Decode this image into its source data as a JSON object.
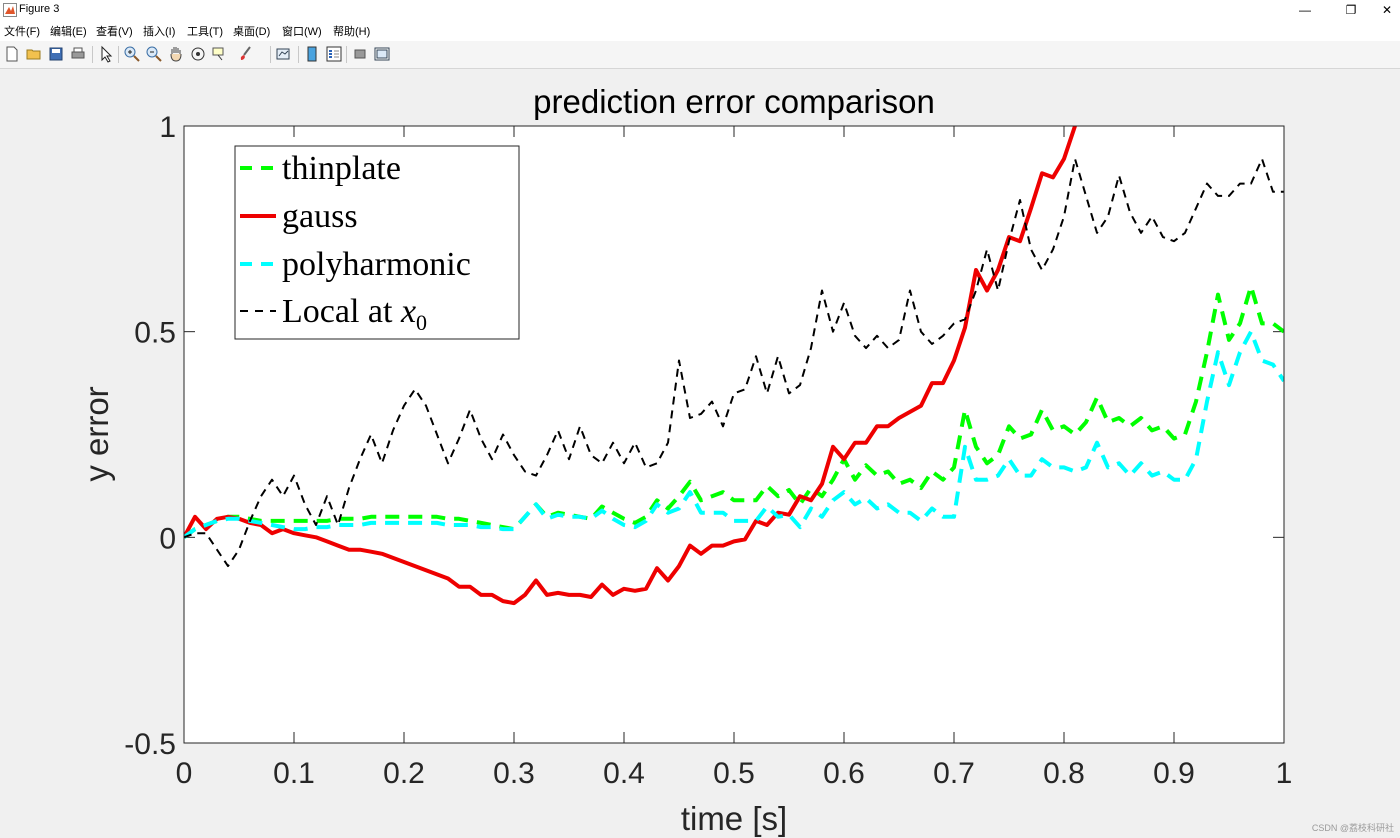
{
  "window": {
    "title": "Figure 3",
    "controls": [
      "—",
      "❐",
      "✕"
    ]
  },
  "menu": {
    "items": [
      "文件(F)",
      "编辑(E)",
      "查看(V)",
      "插入(I)",
      "工具(T)",
      "桌面(D)",
      "窗口(W)",
      "帮助(H)"
    ]
  },
  "toolbar": {
    "buttons": [
      {
        "name": "new-figure-icon"
      },
      {
        "name": "open-file-icon"
      },
      {
        "name": "save-icon"
      },
      {
        "name": "print-icon"
      },
      {
        "name": "select-pointer-icon"
      },
      {
        "name": "zoom-in-icon"
      },
      {
        "name": "zoom-out-icon"
      },
      {
        "name": "pan-hand-icon"
      },
      {
        "name": "rotate-3d-icon"
      },
      {
        "name": "data-cursor-icon"
      },
      {
        "name": "brush-icon"
      },
      {
        "name": "link-plot-icon"
      },
      {
        "name": "colorbar-icon"
      },
      {
        "name": "legend-icon"
      },
      {
        "name": "hide-plot-tools-icon"
      },
      {
        "name": "show-plot-tools-icon"
      }
    ]
  },
  "watermark": "CSDN @荔枝科研社",
  "chart_data": {
    "type": "line",
    "title": "prediction error comparison",
    "xlabel": "time [s]",
    "ylabel": "y error",
    "xlim": [
      0,
      1
    ],
    "ylim": [
      -0.5,
      1
    ],
    "xticks": [
      "0",
      "0.1",
      "0.2",
      "0.3",
      "0.4",
      "0.5",
      "0.6",
      "0.7",
      "0.8",
      "0.9",
      "1"
    ],
    "yticks": [
      "-0.5",
      "0",
      "0.5",
      "1"
    ],
    "legend_position": "top-left",
    "series": [
      {
        "name": "thinplate",
        "color": "#00ff00",
        "dash": "dashed",
        "width": "thick",
        "x": [
          0,
          0.01,
          0.02,
          0.03,
          0.04,
          0.05,
          0.06,
          0.07,
          0.08,
          0.09,
          0.1,
          0.11,
          0.12,
          0.13,
          0.14,
          0.15,
          0.16,
          0.17,
          0.18,
          0.19,
          0.2,
          0.21,
          0.22,
          0.23,
          0.24,
          0.25,
          0.26,
          0.27,
          0.28,
          0.29,
          0.3,
          0.31,
          0.32,
          0.33,
          0.34,
          0.35,
          0.36,
          0.37,
          0.38,
          0.39,
          0.4,
          0.41,
          0.42,
          0.43,
          0.44,
          0.45,
          0.46,
          0.47,
          0.48,
          0.49,
          0.5,
          0.51,
          0.52,
          0.53,
          0.54,
          0.55,
          0.56,
          0.57,
          0.58,
          0.59,
          0.6,
          0.61,
          0.62,
          0.63,
          0.64,
          0.65,
          0.66,
          0.67,
          0.68,
          0.69,
          0.7,
          0.71,
          0.72,
          0.73,
          0.74,
          0.75,
          0.76,
          0.77,
          0.78,
          0.79,
          0.8,
          0.81,
          0.82,
          0.83,
          0.84,
          0.85,
          0.86,
          0.87,
          0.88,
          0.89,
          0.9,
          0.91,
          0.92,
          0.93,
          0.94,
          0.95,
          0.96,
          0.97,
          0.98,
          0.99,
          1.0
        ],
        "y": [
          0,
          0.02,
          0.03,
          0.04,
          0.05,
          0.05,
          0.045,
          0.04,
          0.04,
          0.04,
          0.04,
          0.04,
          0.04,
          0.04,
          0.045,
          0.045,
          0.045,
          0.05,
          0.05,
          0.05,
          0.05,
          0.05,
          0.05,
          0.05,
          0.045,
          0.045,
          0.04,
          0.035,
          0.03,
          0.025,
          0.02,
          0.05,
          0.08,
          0.05,
          0.06,
          0.055,
          0.05,
          0.045,
          0.075,
          0.06,
          0.045,
          0.035,
          0.05,
          0.09,
          0.07,
          0.1,
          0.135,
          0.09,
          0.1,
          0.11,
          0.09,
          0.09,
          0.09,
          0.125,
          0.1,
          0.115,
          0.08,
          0.12,
          0.1,
          0.14,
          0.19,
          0.14,
          0.175,
          0.15,
          0.16,
          0.13,
          0.14,
          0.12,
          0.16,
          0.14,
          0.17,
          0.31,
          0.22,
          0.18,
          0.2,
          0.27,
          0.24,
          0.25,
          0.31,
          0.26,
          0.27,
          0.25,
          0.28,
          0.34,
          0.28,
          0.29,
          0.27,
          0.29,
          0.26,
          0.27,
          0.24,
          0.25,
          0.33,
          0.45,
          0.59,
          0.48,
          0.52,
          0.61,
          0.52,
          0.52,
          0.5
        ]
      },
      {
        "name": "gauss",
        "color": "#ee0000",
        "dash": "solid",
        "width": "thick",
        "x": [
          0,
          0.01,
          0.02,
          0.03,
          0.04,
          0.05,
          0.06,
          0.07,
          0.08,
          0.09,
          0.1,
          0.11,
          0.12,
          0.13,
          0.14,
          0.15,
          0.16,
          0.17,
          0.18,
          0.19,
          0.2,
          0.21,
          0.22,
          0.23,
          0.24,
          0.25,
          0.26,
          0.27,
          0.28,
          0.29,
          0.3,
          0.31,
          0.32,
          0.33,
          0.34,
          0.35,
          0.36,
          0.37,
          0.38,
          0.39,
          0.4,
          0.41,
          0.42,
          0.43,
          0.44,
          0.45,
          0.46,
          0.47,
          0.48,
          0.49,
          0.5,
          0.51,
          0.52,
          0.53,
          0.54,
          0.55,
          0.56,
          0.57,
          0.58,
          0.59,
          0.6,
          0.61,
          0.62,
          0.63,
          0.64,
          0.65,
          0.66,
          0.67,
          0.68,
          0.69,
          0.7,
          0.71,
          0.72,
          0.73,
          0.74,
          0.75,
          0.76,
          0.77,
          0.78,
          0.79,
          0.8,
          0.81
        ],
        "y": [
          0,
          0.05,
          0.02,
          0.045,
          0.05,
          0.045,
          0.035,
          0.03,
          0.01,
          0.02,
          0.01,
          0.005,
          0,
          -0.01,
          -0.02,
          -0.03,
          -0.03,
          -0.035,
          -0.04,
          -0.05,
          -0.06,
          -0.07,
          -0.08,
          -0.09,
          -0.1,
          -0.12,
          -0.12,
          -0.14,
          -0.14,
          -0.155,
          -0.16,
          -0.14,
          -0.105,
          -0.14,
          -0.135,
          -0.14,
          -0.14,
          -0.145,
          -0.115,
          -0.14,
          -0.125,
          -0.13,
          -0.125,
          -0.075,
          -0.105,
          -0.07,
          -0.02,
          -0.04,
          -0.02,
          -0.02,
          -0.01,
          -0.005,
          0.04,
          0.03,
          0.06,
          0.055,
          0.1,
          0.09,
          0.13,
          0.22,
          0.19,
          0.23,
          0.23,
          0.27,
          0.27,
          0.29,
          0.305,
          0.32,
          0.375,
          0.375,
          0.43,
          0.51,
          0.65,
          0.6,
          0.65,
          0.73,
          0.72,
          0.8,
          0.885,
          0.875,
          0.92,
          1.0
        ]
      },
      {
        "name": "polyharmonic",
        "color": "#00ffff",
        "dash": "dashed",
        "width": "thick",
        "x": [
          0,
          0.01,
          0.02,
          0.03,
          0.04,
          0.05,
          0.06,
          0.07,
          0.08,
          0.09,
          0.1,
          0.11,
          0.12,
          0.13,
          0.14,
          0.15,
          0.16,
          0.17,
          0.18,
          0.19,
          0.2,
          0.21,
          0.22,
          0.23,
          0.24,
          0.25,
          0.26,
          0.27,
          0.28,
          0.29,
          0.3,
          0.31,
          0.32,
          0.33,
          0.34,
          0.35,
          0.36,
          0.37,
          0.38,
          0.39,
          0.4,
          0.41,
          0.42,
          0.43,
          0.44,
          0.45,
          0.46,
          0.47,
          0.48,
          0.49,
          0.5,
          0.51,
          0.52,
          0.53,
          0.54,
          0.55,
          0.56,
          0.57,
          0.58,
          0.59,
          0.6,
          0.61,
          0.62,
          0.63,
          0.64,
          0.65,
          0.66,
          0.67,
          0.68,
          0.69,
          0.7,
          0.71,
          0.72,
          0.73,
          0.74,
          0.75,
          0.76,
          0.77,
          0.78,
          0.79,
          0.8,
          0.81,
          0.82,
          0.83,
          0.84,
          0.85,
          0.86,
          0.87,
          0.88,
          0.89,
          0.9,
          0.91,
          0.92,
          0.93,
          0.94,
          0.95,
          0.96,
          0.97,
          0.98,
          0.99,
          1.0
        ],
        "y": [
          0,
          0.02,
          0.03,
          0.04,
          0.045,
          0.045,
          0.04,
          0.035,
          0.03,
          0.025,
          0.02,
          0.02,
          0.025,
          0.025,
          0.03,
          0.03,
          0.03,
          0.035,
          0.035,
          0.035,
          0.035,
          0.035,
          0.035,
          0.035,
          0.03,
          0.03,
          0.03,
          0.025,
          0.025,
          0.02,
          0.02,
          0.05,
          0.08,
          0.045,
          0.055,
          0.05,
          0.05,
          0.045,
          0.065,
          0.045,
          0.03,
          0.025,
          0.04,
          0.08,
          0.06,
          0.07,
          0.11,
          0.06,
          0.06,
          0.06,
          0.04,
          0.04,
          0.04,
          0.075,
          0.05,
          0.055,
          0.025,
          0.07,
          0.05,
          0.09,
          0.11,
          0.08,
          0.095,
          0.07,
          0.08,
          0.06,
          0.06,
          0.04,
          0.07,
          0.05,
          0.05,
          0.22,
          0.14,
          0.14,
          0.15,
          0.19,
          0.15,
          0.15,
          0.19,
          0.17,
          0.17,
          0.16,
          0.17,
          0.23,
          0.17,
          0.18,
          0.15,
          0.18,
          0.15,
          0.16,
          0.14,
          0.14,
          0.19,
          0.33,
          0.45,
          0.37,
          0.45,
          0.5,
          0.43,
          0.42,
          0.38
        ]
      },
      {
        "name": "Local at x0",
        "color": "#000000",
        "dash": "dashed",
        "width": "thin",
        "x": [
          0,
          0.01,
          0.02,
          0.03,
          0.04,
          0.05,
          0.06,
          0.07,
          0.08,
          0.09,
          0.1,
          0.11,
          0.12,
          0.13,
          0.14,
          0.15,
          0.16,
          0.17,
          0.18,
          0.19,
          0.2,
          0.21,
          0.22,
          0.23,
          0.24,
          0.25,
          0.26,
          0.27,
          0.28,
          0.29,
          0.3,
          0.31,
          0.32,
          0.33,
          0.34,
          0.35,
          0.36,
          0.37,
          0.38,
          0.39,
          0.4,
          0.41,
          0.42,
          0.43,
          0.44,
          0.45,
          0.46,
          0.47,
          0.48,
          0.49,
          0.5,
          0.51,
          0.52,
          0.53,
          0.54,
          0.55,
          0.56,
          0.57,
          0.58,
          0.59,
          0.6,
          0.61,
          0.62,
          0.63,
          0.64,
          0.65,
          0.66,
          0.67,
          0.68,
          0.69,
          0.7,
          0.71,
          0.72,
          0.73,
          0.74,
          0.75,
          0.76,
          0.77,
          0.78,
          0.79,
          0.8,
          0.81,
          0.82,
          0.83,
          0.84,
          0.85,
          0.86,
          0.87,
          0.88,
          0.89,
          0.9,
          0.91,
          0.92,
          0.93,
          0.94,
          0.95,
          0.96,
          0.97,
          0.98,
          0.99,
          1.0
        ],
        "y": [
          0,
          0.01,
          0.01,
          -0.03,
          -0.07,
          -0.03,
          0.04,
          0.1,
          0.14,
          0.1,
          0.15,
          0.08,
          0.03,
          0.1,
          0.03,
          0.12,
          0.19,
          0.25,
          0.18,
          0.26,
          0.32,
          0.36,
          0.32,
          0.25,
          0.18,
          0.24,
          0.31,
          0.24,
          0.19,
          0.25,
          0.2,
          0.16,
          0.15,
          0.2,
          0.26,
          0.19,
          0.27,
          0.2,
          0.18,
          0.23,
          0.18,
          0.23,
          0.17,
          0.18,
          0.23,
          0.43,
          0.29,
          0.3,
          0.33,
          0.27,
          0.35,
          0.36,
          0.44,
          0.35,
          0.44,
          0.35,
          0.37,
          0.46,
          0.6,
          0.5,
          0.57,
          0.49,
          0.46,
          0.49,
          0.46,
          0.48,
          0.6,
          0.5,
          0.47,
          0.49,
          0.52,
          0.53,
          0.6,
          0.7,
          0.6,
          0.72,
          0.82,
          0.7,
          0.65,
          0.7,
          0.78,
          0.92,
          0.83,
          0.74,
          0.78,
          0.88,
          0.79,
          0.74,
          0.78,
          0.73,
          0.72,
          0.74,
          0.8,
          0.86,
          0.83,
          0.83,
          0.86,
          0.86,
          0.92,
          0.84,
          0.84
        ]
      }
    ]
  }
}
